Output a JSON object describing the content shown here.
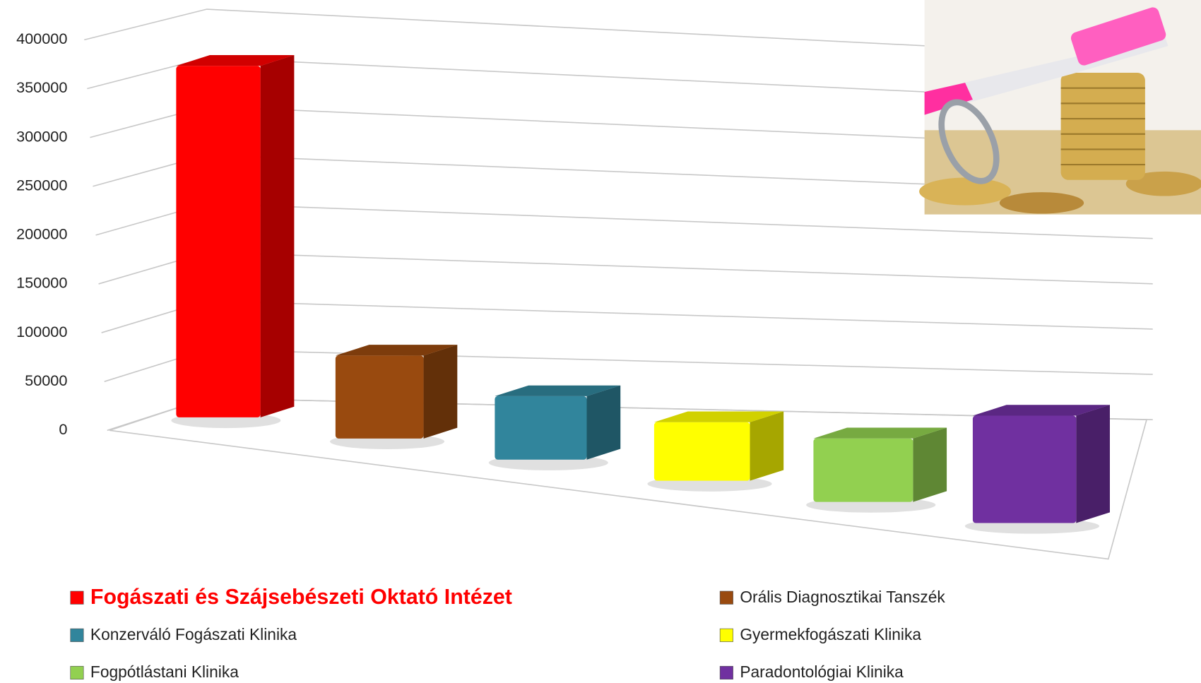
{
  "chart_data": {
    "type": "bar3d",
    "categories": [
      "Fogászati és Szájsebészeti Oktató Intézet",
      "Orális Diagnosztikai Tanszék",
      "Konzerváló Fogászati Klinika",
      "Gyermekfogászati Klinika",
      "Fogpótlástani Klinika",
      "Paradontológiai Klinika"
    ],
    "values": [
      360000,
      85000,
      65000,
      60000,
      65000,
      110000
    ],
    "colors": [
      "#ff0000",
      "#994a0f",
      "#31859c",
      "#ffff00",
      "#92d050",
      "#7030a0"
    ],
    "ylim": [
      0,
      400000
    ],
    "yticks": [
      0,
      50000,
      100000,
      150000,
      200000,
      250000,
      300000,
      350000,
      400000
    ],
    "grid": true,
    "legend": "bottom"
  }
}
